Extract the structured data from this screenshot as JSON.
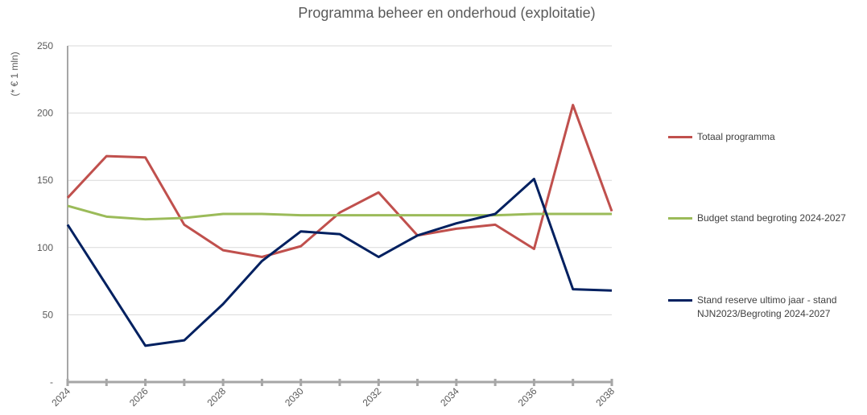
{
  "chart_data": {
    "type": "line",
    "title": "Programma beheer en onderhoud (exploitatie)",
    "y_label": "(* € 1 mln)",
    "x": [
      2024,
      2025,
      2026,
      2027,
      2028,
      2029,
      2030,
      2031,
      2032,
      2033,
      2034,
      2035,
      2036,
      2037,
      2038
    ],
    "xlim": [
      2024,
      2038
    ],
    "xticks": [
      2024,
      2026,
      2028,
      2030,
      2032,
      2034,
      2036,
      2038
    ],
    "ylim": [
      0,
      250
    ],
    "yticks": [
      {
        "value": 0,
        "label": "-"
      },
      50,
      100,
      150,
      200,
      250
    ],
    "grid": true,
    "legend": "right",
    "series": [
      {
        "name": "Totaal programma",
        "color": "#c0504d",
        "values": [
          137,
          168,
          167,
          117,
          98,
          93,
          101,
          126,
          141,
          109,
          114,
          117,
          99,
          206,
          127
        ]
      },
      {
        "name": "Budget stand begroting 2024-2027",
        "color": "#9bbb59",
        "values": [
          131,
          123,
          121,
          122,
          125,
          125,
          124,
          124,
          124,
          124,
          124,
          124,
          125,
          125,
          125
        ]
      },
      {
        "name": "Stand reserve ultimo jaar - stand NJN2023/Begroting 2024-2027",
        "color": "#002060",
        "values": [
          117,
          72,
          27,
          31,
          58,
          90,
          112,
          110,
          93,
          109,
          118,
          125,
          151,
          69,
          68
        ]
      }
    ]
  }
}
